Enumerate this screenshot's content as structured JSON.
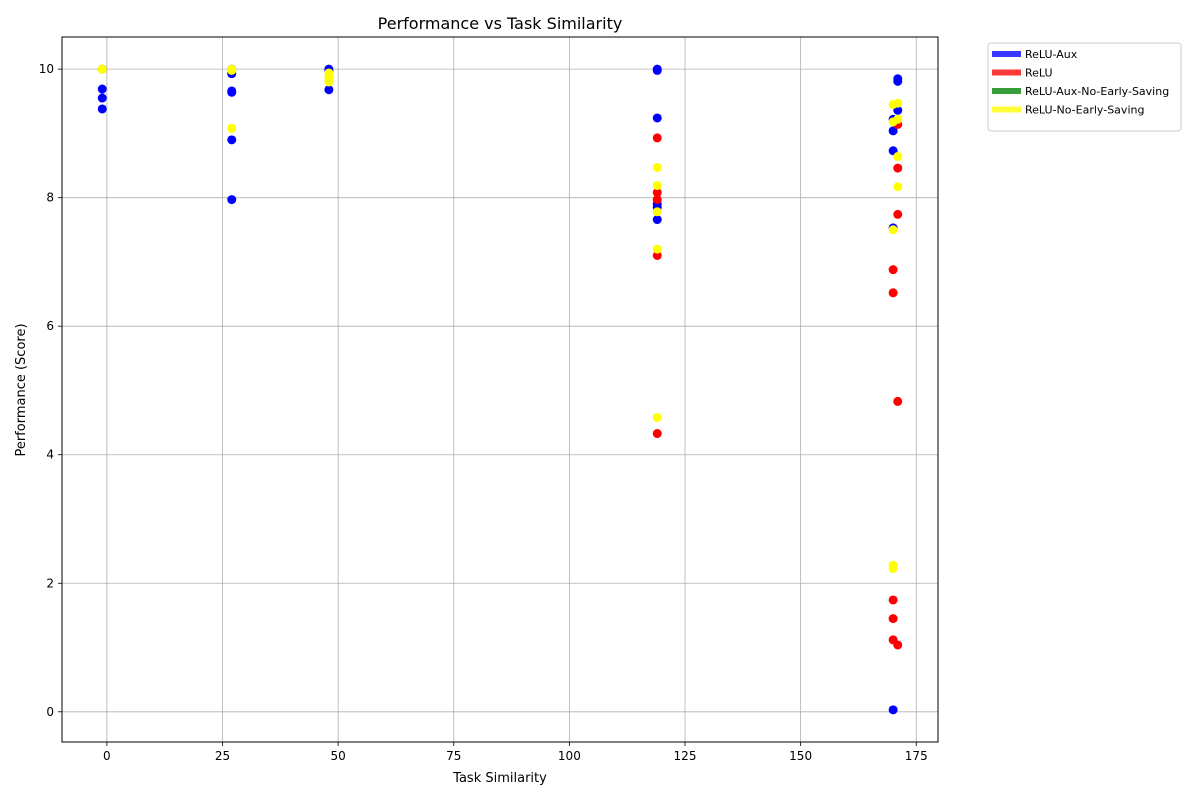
{
  "chart_data": {
    "type": "scatter",
    "title": "Performance vs Task Similarity",
    "xlabel": "Task Similarity",
    "ylabel": "Performance (Score)",
    "xlim": [
      -9.7,
      179.7
    ],
    "ylim": [
      -0.47,
      10.5
    ],
    "xticks": [
      0,
      25,
      50,
      75,
      100,
      125,
      150,
      175
    ],
    "yticks": [
      0,
      2,
      4,
      6,
      8,
      10
    ],
    "grid": true,
    "legend_position": "outside-top-right",
    "series": [
      {
        "name": "ReLU-Aux",
        "color": "#0000ff",
        "points": [
          [
            -1,
            10.0
          ],
          [
            -1,
            9.69
          ],
          [
            -1,
            9.55
          ],
          [
            -1,
            9.38
          ],
          [
            27,
            10.0
          ],
          [
            27,
            9.93
          ],
          [
            27,
            9.66
          ],
          [
            27,
            9.64
          ],
          [
            27,
            8.9
          ],
          [
            27,
            7.97
          ],
          [
            48,
            10.0
          ],
          [
            48,
            9.97
          ],
          [
            48,
            9.68
          ],
          [
            119,
            10.0
          ],
          [
            119,
            9.98
          ],
          [
            119,
            9.24
          ],
          [
            119,
            7.9
          ],
          [
            119,
            7.85
          ],
          [
            119,
            7.66
          ],
          [
            171,
            9.85
          ],
          [
            171,
            9.81
          ],
          [
            171,
            9.36
          ],
          [
            170,
            9.22
          ],
          [
            170,
            9.04
          ],
          [
            170,
            8.73
          ],
          [
            170,
            7.53
          ],
          [
            170,
            0.03
          ]
        ]
      },
      {
        "name": "ReLU",
        "color": "#ff0000",
        "points": [
          [
            119,
            8.93
          ],
          [
            119,
            8.08
          ],
          [
            119,
            7.97
          ],
          [
            119,
            7.1
          ],
          [
            119,
            4.33
          ],
          [
            171,
            9.14
          ],
          [
            171,
            8.46
          ],
          [
            171,
            7.74
          ],
          [
            170,
            6.88
          ],
          [
            170,
            6.52
          ],
          [
            171,
            4.83
          ],
          [
            170,
            1.74
          ],
          [
            170,
            1.45
          ],
          [
            170,
            1.12
          ],
          [
            171,
            1.04
          ]
        ]
      },
      {
        "name": "ReLU-Aux-No-Early-Saving",
        "color": "#008000",
        "points": []
      },
      {
        "name": "ReLU-No-Early-Saving",
        "color": "#ffff00",
        "points": [
          [
            -1,
            10.0
          ],
          [
            -1,
            10.0
          ],
          [
            27,
            10.0
          ],
          [
            27,
            9.98
          ],
          [
            27,
            9.08
          ],
          [
            48,
            9.94
          ],
          [
            48,
            9.87
          ],
          [
            48,
            9.8
          ],
          [
            119,
            8.47
          ],
          [
            119,
            8.19
          ],
          [
            119,
            7.78
          ],
          [
            119,
            7.2
          ],
          [
            119,
            4.58
          ],
          [
            170,
            9.45
          ],
          [
            171,
            9.47
          ],
          [
            171,
            9.22
          ],
          [
            170,
            9.18
          ],
          [
            171,
            8.64
          ],
          [
            171,
            8.17
          ],
          [
            170,
            7.5
          ],
          [
            170,
            2.28
          ],
          [
            170,
            2.23
          ]
        ]
      }
    ]
  }
}
